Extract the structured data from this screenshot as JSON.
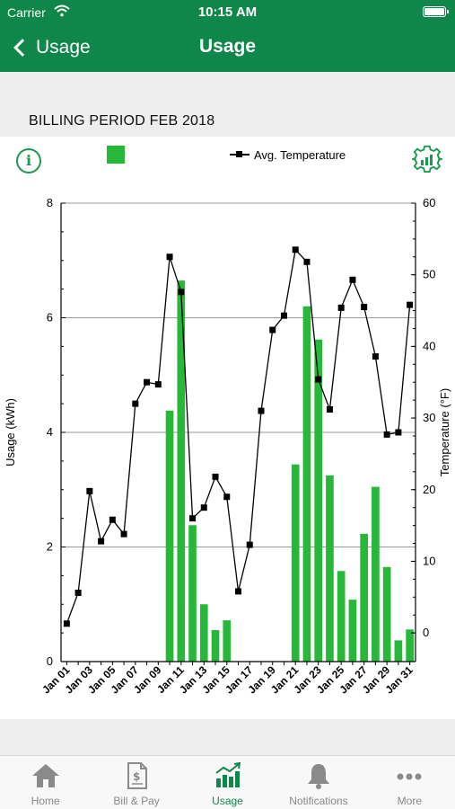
{
  "status": {
    "carrier": "Carrier",
    "time": "10:15 AM"
  },
  "nav": {
    "back_label": "Usage",
    "title": "Usage"
  },
  "billing_period": "BILLING PERIOD FEB 2018",
  "legend": {
    "info": "i",
    "temperature": "Avg. Temperature"
  },
  "colors": {
    "brand": "#10874a",
    "bar": "#27b83a",
    "line": "#000000"
  },
  "chart_data": {
    "type": "bar",
    "x": [
      "Jan 01",
      "Jan 02",
      "Jan 03",
      "Jan 04",
      "Jan 05",
      "Jan 06",
      "Jan 07",
      "Jan 08",
      "Jan 09",
      "Jan 10",
      "Jan 11",
      "Jan 12",
      "Jan 13",
      "Jan 14",
      "Jan 15",
      "Jan 16",
      "Jan 17",
      "Jan 18",
      "Jan 19",
      "Jan 20",
      "Jan 21",
      "Jan 22",
      "Jan 23",
      "Jan 24",
      "Jan 25",
      "Jan 26",
      "Jan 27",
      "Jan 28",
      "Jan 29",
      "Jan 30",
      "Jan 31"
    ],
    "x_tick_labels": [
      "Jan 01",
      "Jan 03",
      "Jan 05",
      "Jan 07",
      "Jan 09",
      "Jan 11",
      "Jan 13",
      "Jan 15",
      "Jan 17",
      "Jan 19",
      "Jan 21",
      "Jan 23",
      "Jan 25",
      "Jan 27",
      "Jan 29",
      "Jan 31"
    ],
    "series": [
      {
        "kind": "bar",
        "axis": "left",
        "values": [
          0,
          0,
          0,
          0,
          0,
          0,
          0,
          0,
          0,
          4.38,
          6.65,
          2.38,
          1.0,
          0.55,
          0.72,
          0,
          0,
          0,
          0,
          0,
          3.44,
          6.2,
          5.62,
          3.25,
          1.58,
          1.08,
          2.23,
          3.05,
          1.65,
          0.37,
          0.56
        ]
      },
      {
        "kind": "line",
        "axis": "right",
        "name": "Avg. Temperature",
        "values": [
          1.3,
          5.6,
          19.8,
          12.8,
          15.8,
          13.8,
          32.0,
          35.0,
          34.7,
          52.5,
          47.6,
          16.0,
          17.5,
          21.8,
          19.0,
          5.8,
          12.3,
          31.0,
          42.3,
          44.3,
          53.5,
          51.8,
          35.4,
          31.2,
          45.4,
          49.3,
          45.5,
          38.6,
          27.7,
          28.0,
          45.8
        ]
      }
    ],
    "ylabel": "Usage (kWh)",
    "y2label": "Temperature (°F)",
    "ylim": [
      0,
      8
    ],
    "y2lim": [
      -4,
      60
    ],
    "yticks": [
      "0",
      "2",
      "4",
      "6",
      "8"
    ],
    "y2ticks": [
      "0",
      "10",
      "20",
      "30",
      "40",
      "50",
      "60"
    ],
    "grid": true
  },
  "tabs": [
    {
      "label": "Home",
      "icon": "home-icon",
      "active": false
    },
    {
      "label": "Bill & Pay",
      "icon": "bill-icon",
      "active": false
    },
    {
      "label": "Usage",
      "icon": "usage-chart-icon",
      "active": true
    },
    {
      "label": "Notifications",
      "icon": "bell-icon",
      "active": false
    },
    {
      "label": "More",
      "icon": "more-icon",
      "active": false
    }
  ]
}
